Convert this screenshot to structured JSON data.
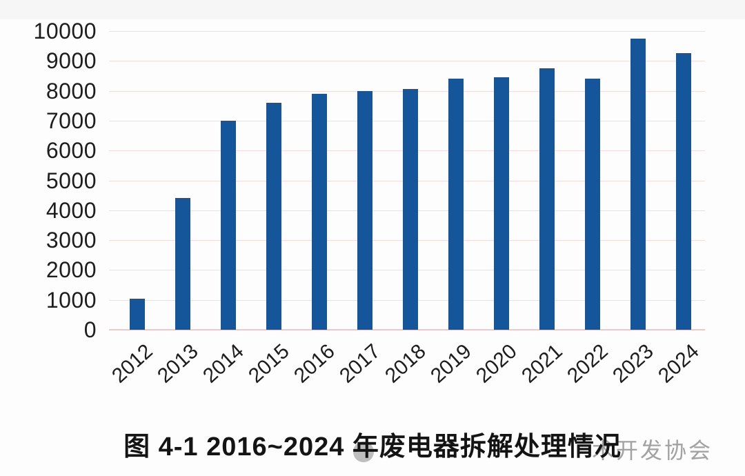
{
  "page": {
    "background": "#fdfdfd"
  },
  "caption": {
    "text": "图 4-1  2016~2024 年废电器拆解处理情况"
  },
  "watermark": {
    "visible_text": "术开发协会",
    "logo": "gray-circle",
    "text_color": "#a2a2a2",
    "logo_color": "#9d9d9d"
  },
  "chart_data": {
    "type": "bar",
    "categories": [
      "2012",
      "2013",
      "2014",
      "2015",
      "2016",
      "2017",
      "2018",
      "2019",
      "2020",
      "2021",
      "2022",
      "2023",
      "2024"
    ],
    "values": [
      1050,
      4400,
      7000,
      7600,
      7900,
      8000,
      8050,
      8400,
      8450,
      8750,
      8400,
      9750,
      9250
    ],
    "title": "",
    "xlabel": "",
    "ylabel": "",
    "ylim": [
      0,
      10000
    ],
    "ytick_step": 1000,
    "ytick_labels": [
      "0",
      "1000",
      "2000",
      "3000",
      "4000",
      "5000",
      "6000",
      "7000",
      "8000",
      "9000",
      "10000"
    ],
    "grid": true,
    "legend_position": "none",
    "bar_color": "#15569b",
    "gridline_color": "#f3dcdc",
    "baseline_color": "#eccaca",
    "tick_label_color": "#1d1d1d"
  }
}
